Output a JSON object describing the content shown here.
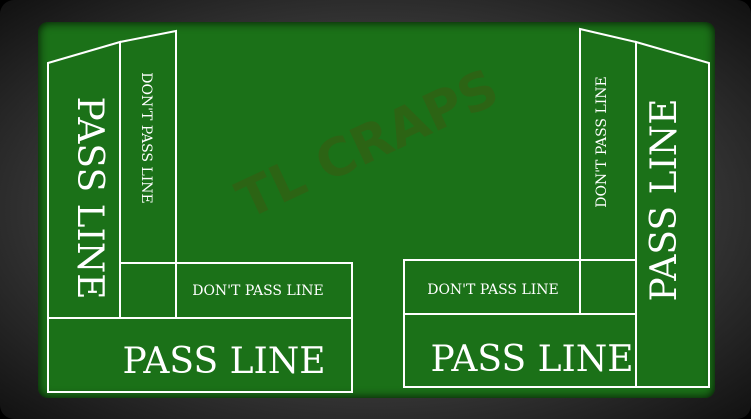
{
  "table": {
    "logo": "TL CRAPS",
    "felt_color": "#1b7118",
    "line_color": "#ffffff",
    "left": {
      "pass_line_vertical": "PASS LINE",
      "dont_pass_vertical": "DON'T PASS LINE",
      "dont_pass_horizontal": "DON'T PASS LINE",
      "pass_line_horizontal": "PASS LINE"
    },
    "right": {
      "pass_line_vertical": "PASS LINE",
      "dont_pass_vertical": "DON'T PASS LINE",
      "dont_pass_horizontal": "DON'T PASS LINE",
      "pass_line_horizontal": "PASS LINE"
    }
  }
}
